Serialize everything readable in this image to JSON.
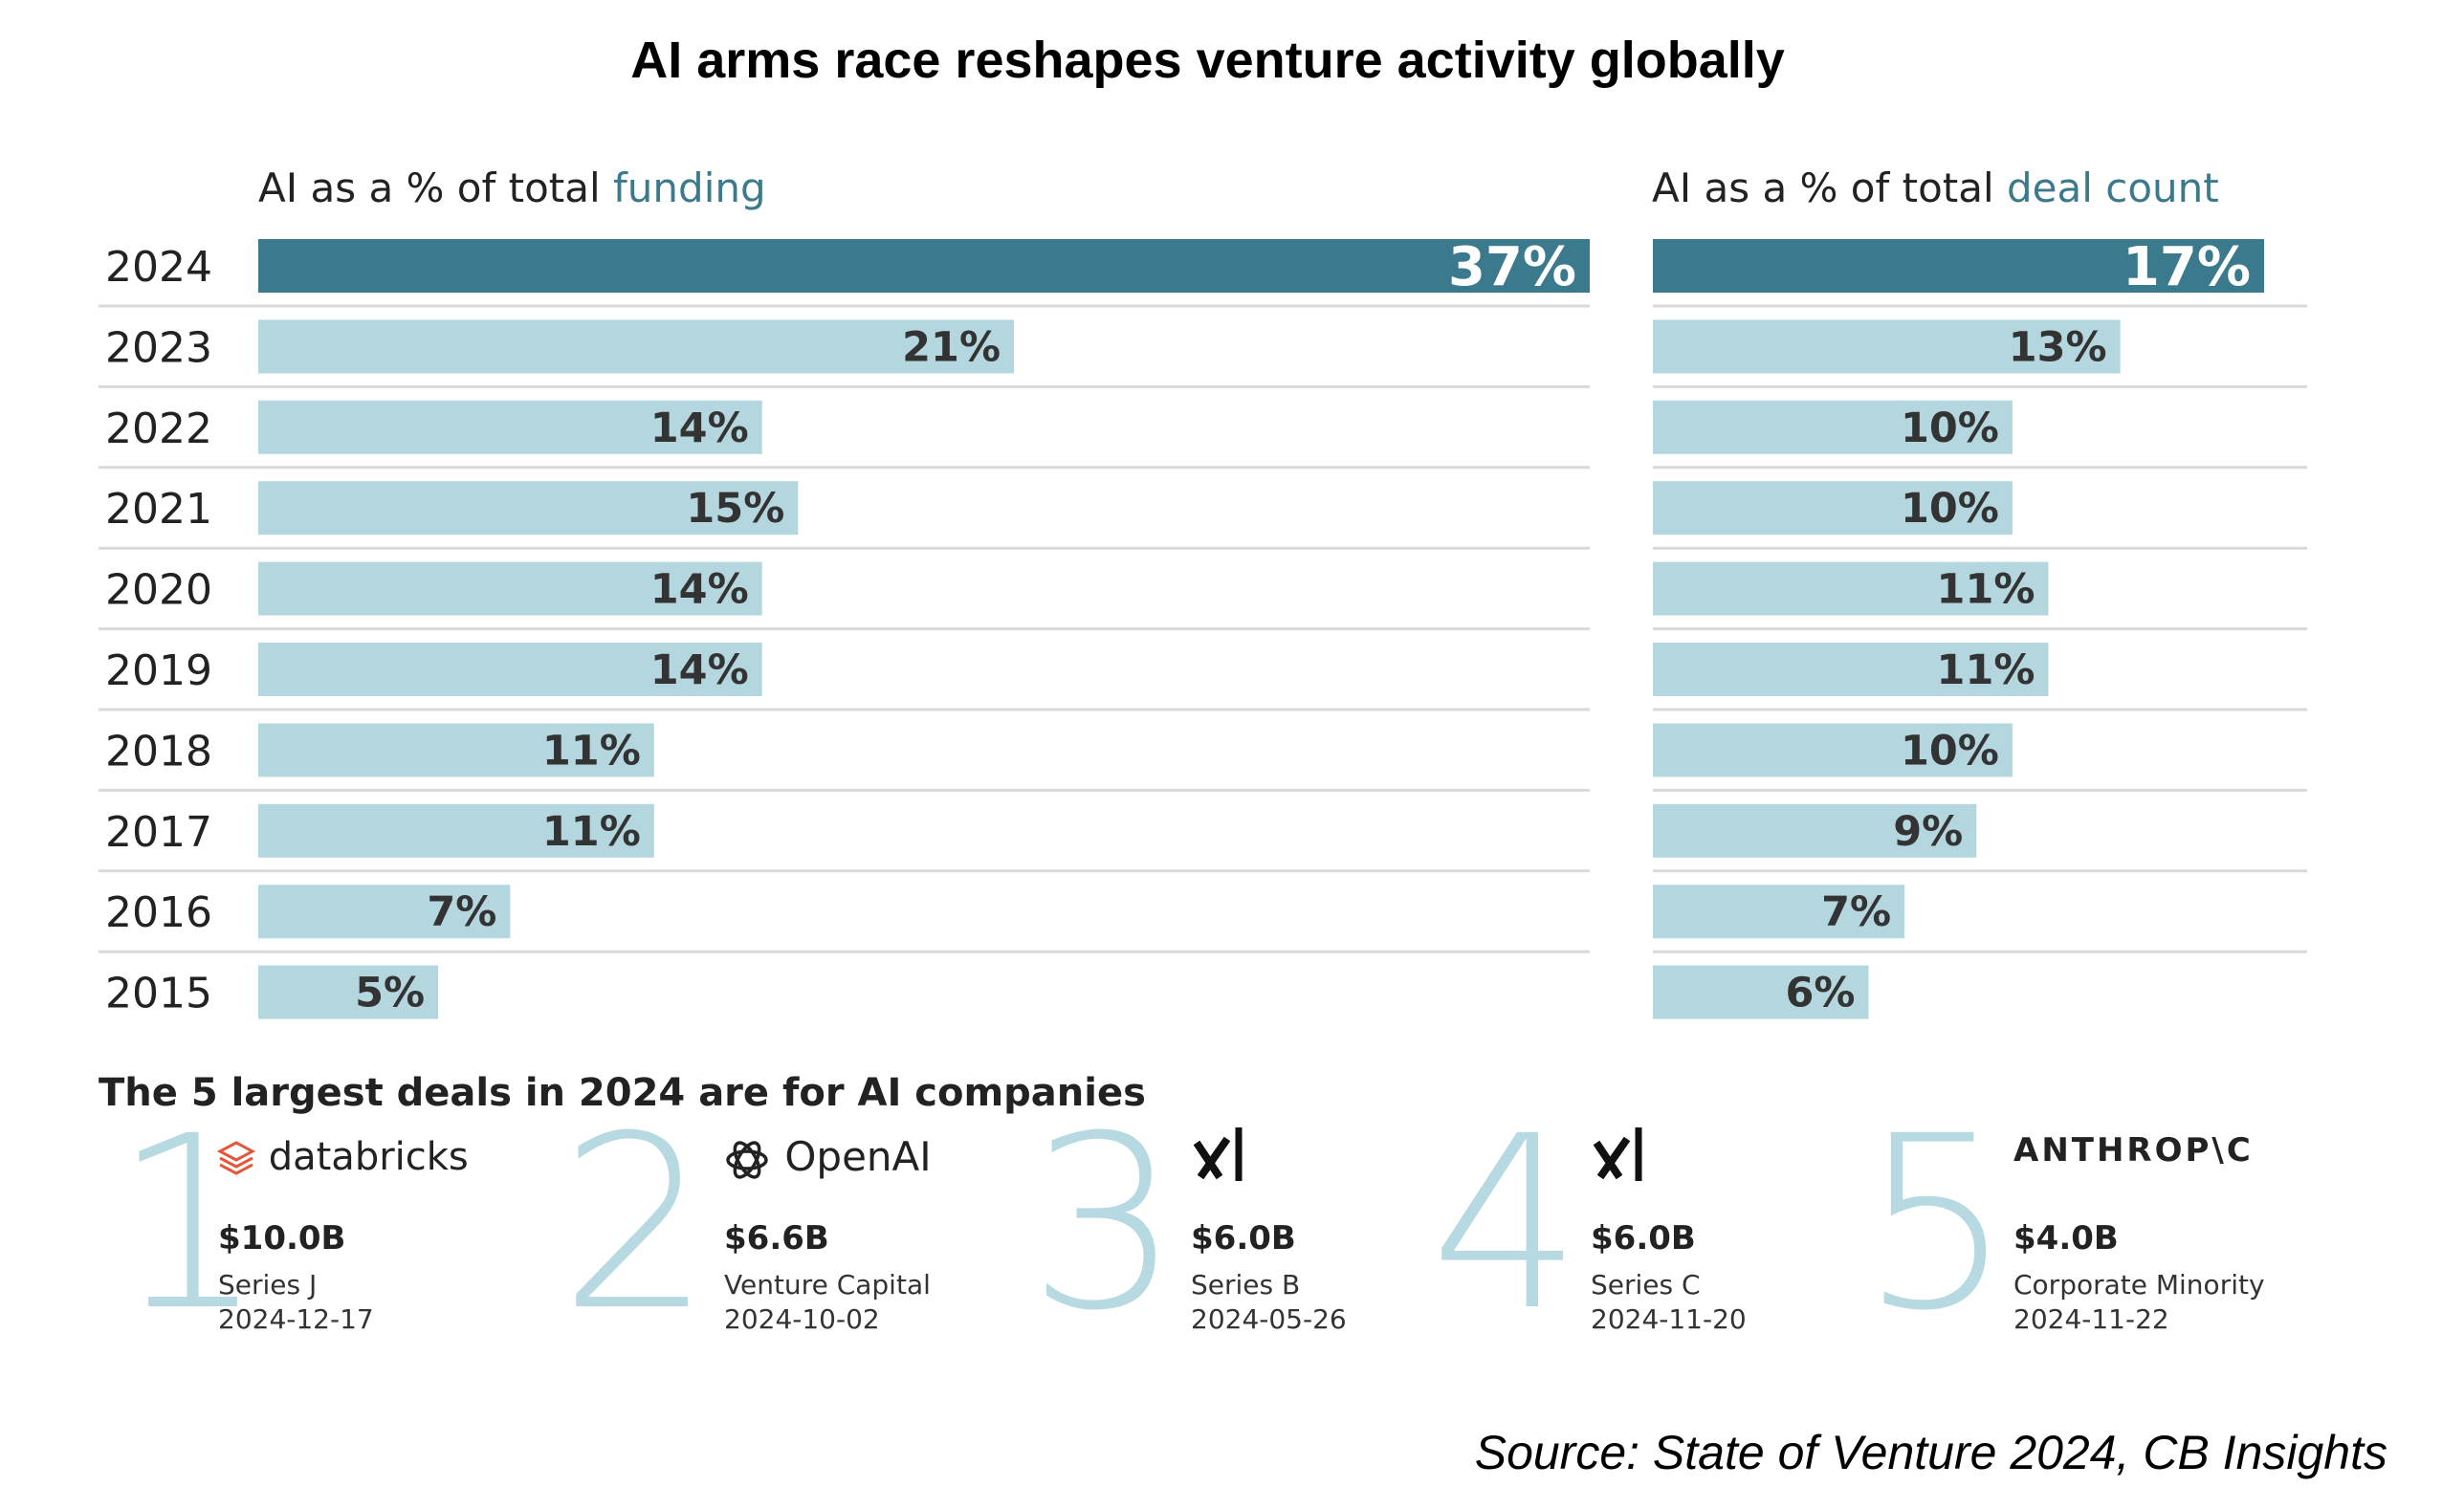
{
  "title": "AI arms race reshapes venture activity globally",
  "panels": {
    "funding": {
      "label_prefix": "AI as a % of total ",
      "label_highlight": "funding"
    },
    "deals": {
      "label_prefix": "AI as a % of total ",
      "label_highlight": "deal count"
    }
  },
  "chart_data": [
    {
      "type": "bar",
      "orientation": "horizontal",
      "title": "AI as a % of total funding",
      "categories": [
        "2024",
        "2023",
        "2022",
        "2021",
        "2020",
        "2019",
        "2018",
        "2017",
        "2016",
        "2015"
      ],
      "values": [
        37,
        21,
        14,
        15,
        14,
        14,
        11,
        11,
        7,
        5
      ],
      "value_labels": [
        "37%",
        "21%",
        "14%",
        "15%",
        "14%",
        "14%",
        "11%",
        "11%",
        "7%",
        "5%"
      ],
      "xlim": [
        0,
        37
      ]
    },
    {
      "type": "bar",
      "orientation": "horizontal",
      "title": "AI as a % of total deal count",
      "categories": [
        "2024",
        "2023",
        "2022",
        "2021",
        "2020",
        "2019",
        "2018",
        "2017",
        "2016",
        "2015"
      ],
      "values": [
        17,
        13,
        10,
        10,
        11,
        11,
        10,
        9,
        7,
        6
      ],
      "value_labels": [
        "17%",
        "13%",
        "10%",
        "10%",
        "11%",
        "11%",
        "10%",
        "9%",
        "7%",
        "6%"
      ],
      "xlim": [
        0,
        17
      ]
    }
  ],
  "colors": {
    "highlight_bar": "#3b7a8c",
    "bar": "#b4d7df",
    "highlight_text": "#ffffff",
    "bar_text": "#333333",
    "rank": "#b7d9e2",
    "databricks": "#e4573d"
  },
  "deals": {
    "title": "The 5 largest deals in 2024 are for AI companies",
    "items": [
      {
        "rank": "1",
        "company": "databricks",
        "logo_icon": "databricks-icon",
        "amount": "$10.0B",
        "series": "Series J",
        "date": "2024-12-17"
      },
      {
        "rank": "2",
        "company": "OpenAI",
        "logo_icon": "openai-icon",
        "amount": "$6.6B",
        "series": "Venture Capital",
        "date": "2024-10-02"
      },
      {
        "rank": "3",
        "company": "xAI",
        "logo_icon": "xai-icon",
        "amount": "$6.0B",
        "series": "Series B",
        "date": "2024-05-26"
      },
      {
        "rank": "4",
        "company": "xAI",
        "logo_icon": "xai-icon",
        "amount": "$6.0B",
        "series": "Series C",
        "date": "2024-11-20"
      },
      {
        "rank": "5",
        "company": "ANTHROP\\C",
        "logo_icon": "anthropic-icon",
        "amount": "$4.0B",
        "series": "Corporate Minority",
        "date": "2024-11-22"
      }
    ]
  },
  "source": "Source: State of Venture 2024, CB Insights"
}
